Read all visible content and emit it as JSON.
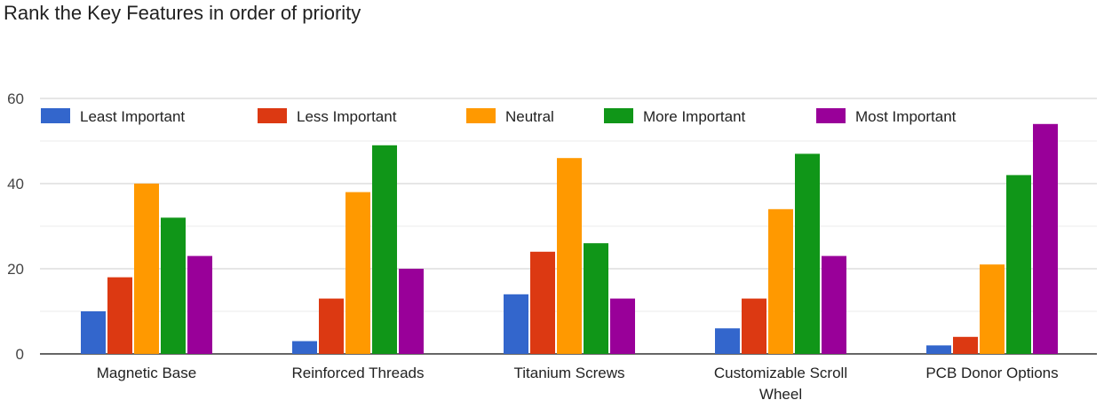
{
  "chart_data": {
    "type": "bar",
    "title": "Rank the Key Features in order of priority",
    "xlabel": "",
    "ylabel": "",
    "ylim": [
      0,
      60
    ],
    "yticks": [
      0,
      20,
      40,
      60
    ],
    "grid": true,
    "legend_position": "top",
    "categories": [
      "Magnetic Base",
      "Reinforced Threads",
      "Titanium Screws",
      "Customizable Scroll Wheel",
      "PCB Donor Options"
    ],
    "series": [
      {
        "name": "Least Important",
        "color": "#3366cc",
        "values": [
          10,
          3,
          14,
          6,
          2
        ]
      },
      {
        "name": "Less Important",
        "color": "#dc3912",
        "values": [
          18,
          13,
          24,
          13,
          4
        ]
      },
      {
        "name": "Neutral",
        "color": "#ff9900",
        "values": [
          40,
          38,
          46,
          34,
          21
        ]
      },
      {
        "name": "More Important",
        "color": "#109618",
        "values": [
          32,
          49,
          26,
          47,
          42
        ]
      },
      {
        "name": "Most Important",
        "color": "#990099",
        "values": [
          23,
          20,
          13,
          23,
          54
        ]
      }
    ]
  }
}
